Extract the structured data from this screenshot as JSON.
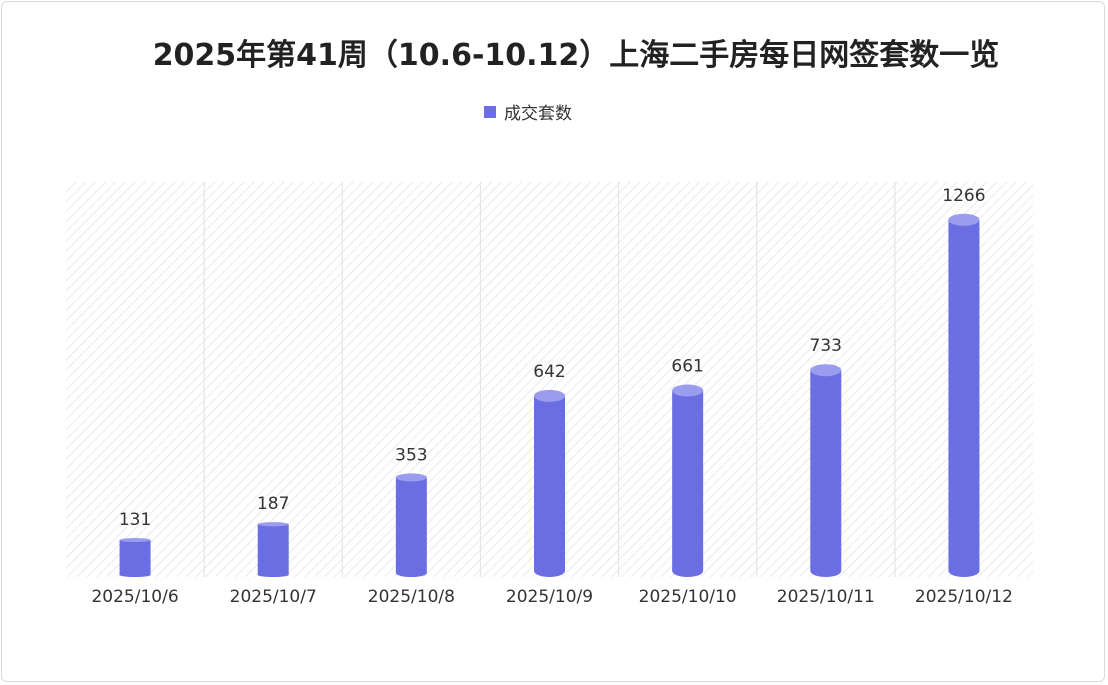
{
  "chart_data": {
    "type": "bar",
    "title": "2025年第41周（10.6-10.12）上海二手房每日网签套数一览",
    "categories": [
      "2025/10/6",
      "2025/10/7",
      "2025/10/8",
      "2025/10/9",
      "2025/10/10",
      "2025/10/11",
      "2025/10/12"
    ],
    "series": [
      {
        "name": "成交套数",
        "values": [
          131,
          187,
          353,
          642,
          661,
          733,
          1266
        ]
      }
    ],
    "ylim": [
      0,
      1400
    ],
    "legend_position": "top-center",
    "grid": false,
    "bar_style": "cylinder",
    "colors": {
      "bar": "#6b6ee2",
      "bar_top": "#9a9cf0",
      "hatch": "#dedede"
    }
  }
}
